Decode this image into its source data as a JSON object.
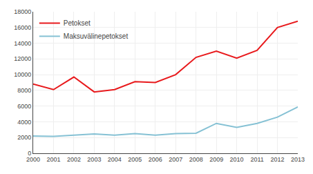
{
  "chart_data": {
    "type": "line",
    "x": [
      2000,
      2001,
      2002,
      2003,
      2004,
      2005,
      2006,
      2007,
      2008,
      2009,
      2010,
      2011,
      2012,
      2013
    ],
    "series": [
      {
        "name": "Petokset",
        "color": "#e8191c",
        "values": [
          8800,
          8100,
          9700,
          7800,
          8100,
          9100,
          9000,
          10000,
          12200,
          13000,
          12100,
          13100,
          16000,
          16800
        ]
      },
      {
        "name": "Maksuvälinepetokset",
        "color": "#85c1d4",
        "values": [
          2200,
          2150,
          2300,
          2450,
          2300,
          2500,
          2300,
          2500,
          2550,
          3800,
          3300,
          3800,
          4600,
          5900
        ]
      }
    ],
    "xlim": [
      2000,
      2013
    ],
    "xticks": [
      2000,
      2001,
      2002,
      2003,
      2004,
      2005,
      2006,
      2007,
      2008,
      2009,
      2010,
      2011,
      2012,
      2013
    ],
    "ylim": [
      0,
      18000
    ],
    "yticks": [
      0,
      2000,
      4000,
      6000,
      8000,
      10000,
      12000,
      14000,
      16000,
      18000
    ],
    "grid": true,
    "legend": "upper left"
  }
}
